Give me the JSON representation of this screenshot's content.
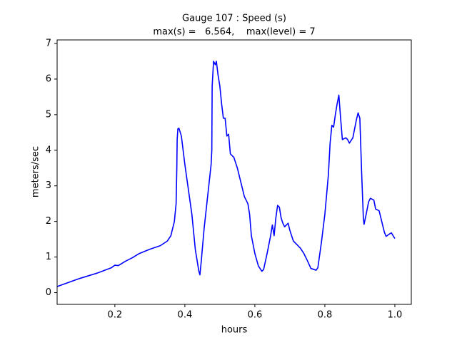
{
  "chart_data": {
    "type": "line",
    "title": "Gauge 107 : Speed (s)",
    "subtitle": "max(s) =   6.564,    max(level) = 7",
    "xlabel": "hours",
    "ylabel": "meters/sec",
    "color": "#0000ff",
    "grid": false,
    "xlim": [
      0.035,
      1.047
    ],
    "ylim": [
      -0.33,
      7.1
    ],
    "xticks": [
      0.2,
      0.4,
      0.6,
      0.8,
      {
        "value": 1,
        "label": "1.0"
      }
    ],
    "yticks": [
      0,
      1,
      2,
      3,
      4,
      5,
      6,
      7
    ],
    "x": [
      0.035,
      0.1,
      0.15,
      0.19,
      0.2,
      0.21,
      0.23,
      0.25,
      0.27,
      0.3,
      0.33,
      0.35,
      0.36,
      0.37,
      0.375,
      0.377,
      0.378,
      0.38,
      0.383,
      0.39,
      0.4,
      0.41,
      0.42,
      0.43,
      0.44,
      0.443,
      0.447,
      0.455,
      0.465,
      0.475,
      0.477,
      0.478,
      0.482,
      0.487,
      0.49,
      0.495,
      0.5,
      0.505,
      0.51,
      0.515,
      0.52,
      0.525,
      0.53,
      0.54,
      0.55,
      0.56,
      0.57,
      0.58,
      0.585,
      0.59,
      0.6,
      0.61,
      0.62,
      0.625,
      0.635,
      0.645,
      0.65,
      0.655,
      0.66,
      0.665,
      0.67,
      0.675,
      0.68,
      0.685,
      0.695,
      0.7,
      0.71,
      0.72,
      0.73,
      0.74,
      0.75,
      0.76,
      0.775,
      0.78,
      0.79,
      0.8,
      0.81,
      0.815,
      0.82,
      0.825,
      0.83,
      0.835,
      0.84,
      0.845,
      0.85,
      0.86,
      0.865,
      0.87,
      0.88,
      0.89,
      0.895,
      0.9,
      0.905,
      0.91,
      0.912,
      0.918,
      0.925,
      0.93,
      0.94,
      0.945,
      0.955,
      0.96,
      0.97,
      0.975,
      0.985,
      0.99,
      0.995,
      1.0
    ],
    "values": [
      0.17,
      0.4,
      0.55,
      0.7,
      0.77,
      0.76,
      0.88,
      0.98,
      1.1,
      1.22,
      1.32,
      1.45,
      1.6,
      2.0,
      2.5,
      3.5,
      4.3,
      4.6,
      4.62,
      4.4,
      3.6,
      2.9,
      2.2,
      1.2,
      0.6,
      0.5,
      0.9,
      1.8,
      2.7,
      3.6,
      4.0,
      5.8,
      6.5,
      6.4,
      6.5,
      6.1,
      5.8,
      5.3,
      4.9,
      4.9,
      4.4,
      4.45,
      3.9,
      3.8,
      3.5,
      3.1,
      2.7,
      2.5,
      2.2,
      1.6,
      1.1,
      0.75,
      0.6,
      0.65,
      1.1,
      1.6,
      1.9,
      1.6,
      2.1,
      2.45,
      2.4,
      2.1,
      1.95,
      1.85,
      1.95,
      1.75,
      1.45,
      1.35,
      1.25,
      1.1,
      0.9,
      0.68,
      0.63,
      0.7,
      1.4,
      2.2,
      3.3,
      4.2,
      4.7,
      4.65,
      5.0,
      5.3,
      5.55,
      4.9,
      4.3,
      4.35,
      4.3,
      4.2,
      4.35,
      4.85,
      5.05,
      4.9,
      3.4,
      2.1,
      1.92,
      2.2,
      2.55,
      2.65,
      2.6,
      2.35,
      2.3,
      2.1,
      1.7,
      1.58,
      1.65,
      1.68,
      1.6,
      1.52
    ]
  }
}
